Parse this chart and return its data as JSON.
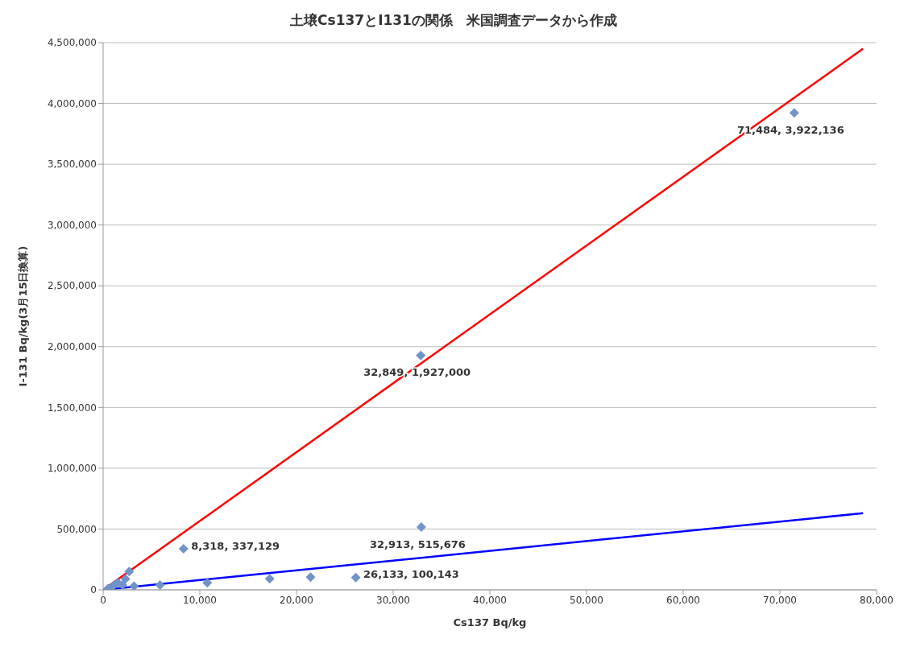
{
  "chart_data": {
    "type": "scatter",
    "title": "土壌Cs137とI131の関係　米国調査データから作成",
    "xlabel": "Cs137 Bq/kg",
    "ylabel": "I-131  Bq/kg(3月15日換算)",
    "xlim": [
      0,
      80000
    ],
    "xticks": [
      {
        "value": 0,
        "label": "0"
      },
      {
        "value": 10000,
        "label": "10,000"
      },
      {
        "value": 20000,
        "label": "20,000"
      },
      {
        "value": 30000,
        "label": "30,000"
      },
      {
        "value": 40000,
        "label": "40,000"
      },
      {
        "value": 50000,
        "label": "50,000"
      },
      {
        "value": 60000,
        "label": "60,000"
      },
      {
        "value": 70000,
        "label": "70,000"
      },
      {
        "value": 80000,
        "label": "80,000"
      }
    ],
    "ylim": [
      0,
      4500000
    ],
    "yticks": [
      {
        "value": 0,
        "label": "0"
      },
      {
        "value": 500000,
        "label": "500,000"
      },
      {
        "value": 1000000,
        "label": "1,000,000"
      },
      {
        "value": 1500000,
        "label": "1,500,000"
      },
      {
        "value": 2000000,
        "label": "2,000,000"
      },
      {
        "value": 2500000,
        "label": "2,500,000"
      },
      {
        "value": 3000000,
        "label": "3,000,000"
      },
      {
        "value": 3500000,
        "label": "3,500,000"
      },
      {
        "value": 4000000,
        "label": "4,000,000"
      },
      {
        "value": 4500000,
        "label": "4,500,000"
      }
    ],
    "grid": "y",
    "legend": false,
    "series": [
      {
        "color": "#7094c8",
        "marker": "diamond",
        "x": [
          71484,
          32849,
          32913,
          8318,
          26133,
          10770,
          17230,
          21460,
          5880,
          2700,
          1500,
          2000,
          3200,
          1000,
          500,
          2300
        ],
        "values": [
          3922136,
          1927000,
          515676,
          337129,
          100143,
          58000,
          91000,
          104000,
          39000,
          150000,
          60000,
          40000,
          30000,
          30000,
          10000,
          90000
        ],
        "value_labels": [
          "71,484, 3,922,136",
          "32,849, 1,927,000",
          "32,913, 515,676",
          "8,318, 337,129",
          "26,133, 100,143",
          null,
          null,
          null,
          null,
          null,
          null,
          null,
          null,
          null,
          null,
          null
        ]
      },
      {
        "type": "line",
        "color": "#ff0000",
        "x": [
          0,
          78600
        ],
        "values": [
          0,
          4450000
        ]
      },
      {
        "type": "line",
        "color": "#0000ff",
        "x": [
          0,
          78600
        ],
        "values": [
          0,
          630000
        ]
      }
    ]
  }
}
